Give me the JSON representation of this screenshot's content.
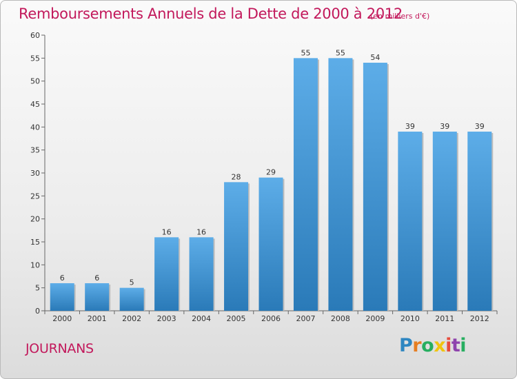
{
  "chart_data": {
    "type": "bar",
    "title": "Remboursements Annuels de la Dette de 2000 à 2012",
    "subtitle": "(en milliers d'€)",
    "categories": [
      "2000",
      "2001",
      "2002",
      "2003",
      "2004",
      "2005",
      "2006",
      "2007",
      "2008",
      "2009",
      "2010",
      "2011",
      "2012"
    ],
    "values": [
      6,
      6,
      5,
      16,
      16,
      28,
      29,
      55,
      55,
      54,
      39,
      39,
      39
    ],
    "ylim": [
      0,
      60
    ],
    "yticks": [
      0,
      5,
      10,
      15,
      20,
      25,
      30,
      35,
      40,
      45,
      50,
      55,
      60
    ],
    "grid": false,
    "bar_color_top": "#5dade8",
    "bar_color_bottom": "#2a7ab8"
  },
  "place": "JOURNANS",
  "logo": {
    "letters": [
      "P",
      "r",
      "o",
      "x",
      "i",
      "t",
      "i"
    ],
    "colors": [
      "#2e86c1",
      "#e67e22",
      "#27ae60",
      "#f1c40f",
      "#e74c3c",
      "#8e44ad",
      "#27ae60"
    ]
  }
}
